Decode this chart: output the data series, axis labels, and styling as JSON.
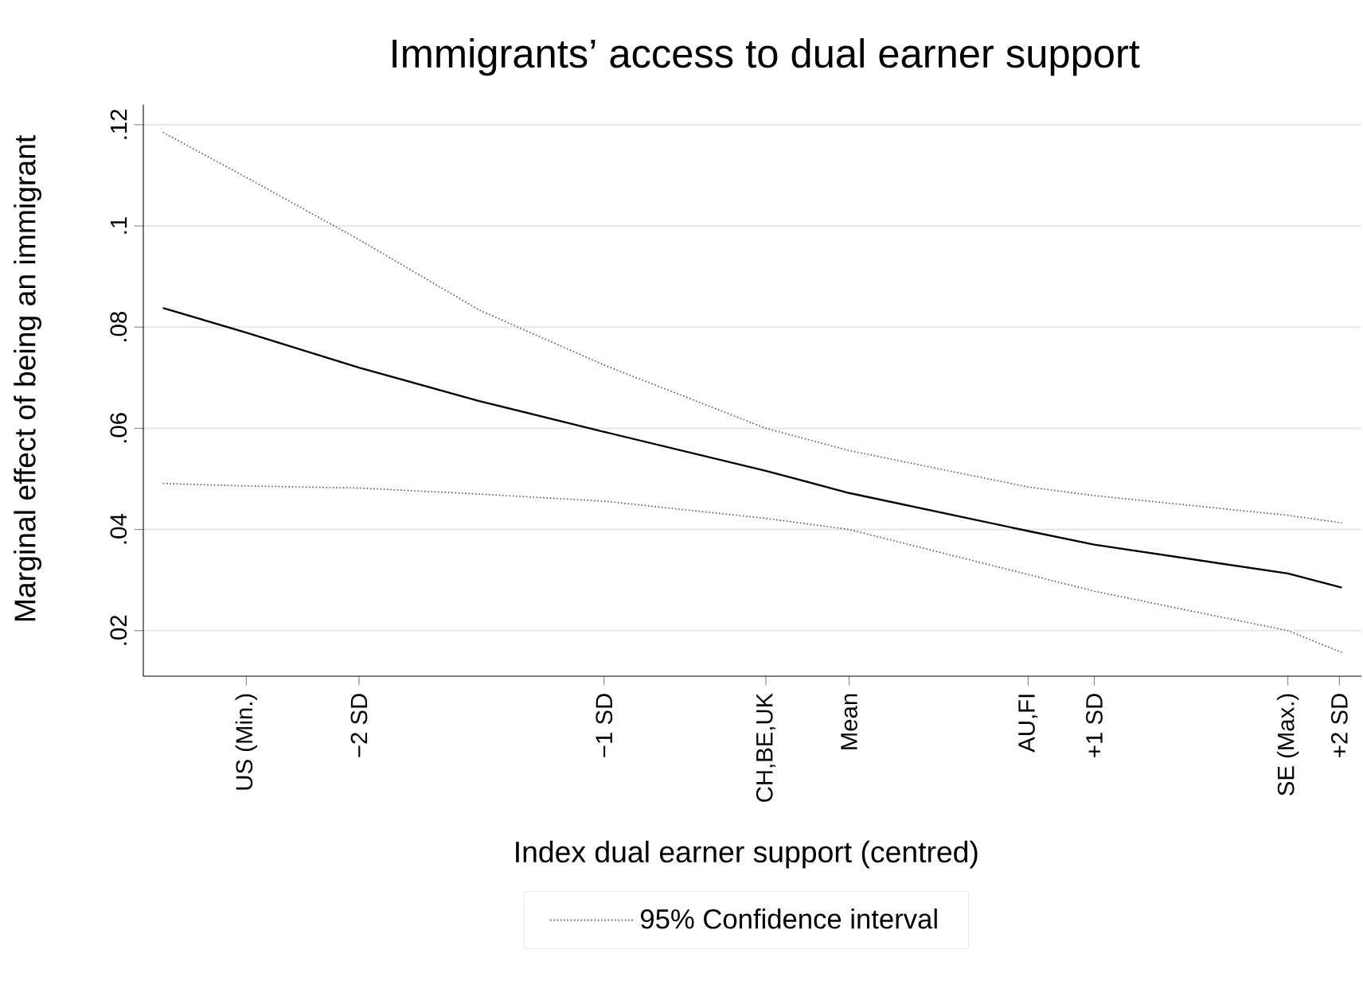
{
  "chart_data": {
    "type": "line",
    "title": "Immigrants’ access to dual earner support",
    "xlabel": "Index dual earner support (centred)",
    "ylabel": "Marginal effect of being an immigrant",
    "xlim": [
      -2.88,
      2.09
    ],
    "ylim": [
      0.011,
      0.124
    ],
    "xticks": [
      {
        "value": -2.46,
        "label": "US (Min.)"
      },
      {
        "value": -2,
        "label": "−2 SD"
      },
      {
        "value": -1,
        "label": "−1 SD"
      },
      {
        "value": -0.34,
        "label": "CH,BE,UK"
      },
      {
        "value": 0,
        "label": "Mean"
      },
      {
        "value": 0.73,
        "label": "AU,FI"
      },
      {
        "value": 1,
        "label": "+1 SD"
      },
      {
        "value": 1.79,
        "label": "SE (Max.)"
      },
      {
        "value": 2,
        "label": "+2 SD"
      }
    ],
    "yticks": [
      {
        "value": 0.02,
        "label": ".02"
      },
      {
        "value": 0.04,
        "label": ".04"
      },
      {
        "value": 0.06,
        "label": ".06"
      },
      {
        "value": 0.08,
        "label": ".08"
      },
      {
        "value": 0.1,
        "label": ".1"
      },
      {
        "value": 0.12,
        "label": ".12"
      }
    ],
    "grid": "y",
    "legend": "bottom",
    "series": [
      {
        "color": "#000000",
        "line_style": "solid",
        "x": [
          -2.8,
          -2.46,
          -2,
          -1.51,
          -1,
          -0.34,
          0,
          0.73,
          1,
          1.79,
          2.01
        ],
        "values": [
          0.0838,
          0.0789,
          0.072,
          0.0654,
          0.0593,
          0.0516,
          0.0472,
          0.0397,
          0.037,
          0.0313,
          0.0285
        ]
      },
      {
        "name": "95% Confidence interval",
        "color": "#555555",
        "line_style": "dotted",
        "x": [
          -2.8,
          -2.46,
          -2,
          -1.51,
          -1,
          -0.34,
          0,
          0.73,
          1,
          1.79,
          2.01
        ],
        "values": [
          0.1185,
          0.1096,
          0.0973,
          0.0834,
          0.0725,
          0.06,
          0.0556,
          0.0484,
          0.0467,
          0.0428,
          0.0413
        ]
      },
      {
        "color": "#555555",
        "line_style": "dotted",
        "x": [
          -2.8,
          -2.46,
          -2,
          -1.51,
          -1,
          -0.34,
          0,
          0.73,
          1,
          1.79,
          2.01
        ],
        "values": [
          0.0491,
          0.0486,
          0.0482,
          0.047,
          0.0456,
          0.0422,
          0.04,
          0.0311,
          0.0278,
          0.02,
          0.0157
        ]
      }
    ]
  }
}
